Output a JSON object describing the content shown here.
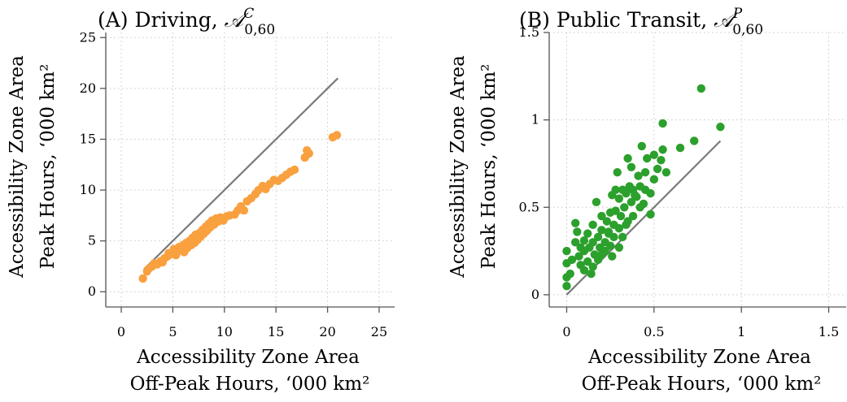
{
  "chart_data": [
    {
      "type": "scatter",
      "title_prefix": "(A) Driving, ",
      "title_math_base": "𝒜",
      "title_math_sup": "C",
      "title_math_sub": "0,60",
      "xlabel_lines": [
        "Accessibility Zone Area",
        "Off-Peak Hours, ‘000 km²"
      ],
      "ylabel_lines": [
        "Accessibility Zone Area",
        "Peak Hours, ‘000 km²"
      ],
      "xlim": [
        -1.5,
        26.5
      ],
      "ylim": [
        -1.5,
        25.5
      ],
      "xticks": [
        0,
        5,
        10,
        15,
        20,
        25
      ],
      "yticks": [
        0,
        5,
        10,
        15,
        20,
        25
      ],
      "xtick_labels": [
        "0",
        "5",
        "10",
        "15",
        "20",
        "25"
      ],
      "ytick_labels": [
        "0",
        "5",
        "10",
        "15",
        "20",
        "25"
      ],
      "grid": true,
      "point_color": "#f9a03f",
      "reference_line": {
        "x": [
          2.2,
          21.0
        ],
        "y": [
          2.2,
          21.0
        ],
        "color": "#7a7a7a"
      },
      "series": [
        {
          "points": [
            [
              2.1,
              1.3
            ],
            [
              2.5,
              2.0
            ],
            [
              2.7,
              2.3
            ],
            [
              3.0,
              2.5
            ],
            [
              3.2,
              2.8
            ],
            [
              3.5,
              2.7
            ],
            [
              3.8,
              3.0
            ],
            [
              4.0,
              2.9
            ],
            [
              4.2,
              3.3
            ],
            [
              4.5,
              3.5
            ],
            [
              4.6,
              3.8
            ],
            [
              4.8,
              3.7
            ],
            [
              5.0,
              3.9
            ],
            [
              5.1,
              4.2
            ],
            [
              5.3,
              3.6
            ],
            [
              5.5,
              4.0
            ],
            [
              5.6,
              4.4
            ],
            [
              5.8,
              4.1
            ],
            [
              6.0,
              4.6
            ],
            [
              6.1,
              3.9
            ],
            [
              6.3,
              4.8
            ],
            [
              6.4,
              4.3
            ],
            [
              6.6,
              5.0
            ],
            [
              6.8,
              4.6
            ],
            [
              6.9,
              5.3
            ],
            [
              7.1,
              4.8
            ],
            [
              7.2,
              5.6
            ],
            [
              7.4,
              5.1
            ],
            [
              7.6,
              5.8
            ],
            [
              7.7,
              5.4
            ],
            [
              7.9,
              6.1
            ],
            [
              8.0,
              5.7
            ],
            [
              8.2,
              6.4
            ],
            [
              8.3,
              6.0
            ],
            [
              8.5,
              6.7
            ],
            [
              8.6,
              6.3
            ],
            [
              8.8,
              7.0
            ],
            [
              9.0,
              6.6
            ],
            [
              9.2,
              7.2
            ],
            [
              9.4,
              6.9
            ],
            [
              9.6,
              7.3
            ],
            [
              9.9,
              7.0
            ],
            [
              10.2,
              7.4
            ],
            [
              10.5,
              7.5
            ],
            [
              11.0,
              7.6
            ],
            [
              11.3,
              8.0
            ],
            [
              11.6,
              8.4
            ],
            [
              11.9,
              8.0
            ],
            [
              12.2,
              8.9
            ],
            [
              12.6,
              9.2
            ],
            [
              13.0,
              9.6
            ],
            [
              13.3,
              10.0
            ],
            [
              13.7,
              10.4
            ],
            [
              14.0,
              10.1
            ],
            [
              14.4,
              10.6
            ],
            [
              14.8,
              11.0
            ],
            [
              15.2,
              10.9
            ],
            [
              15.6,
              11.2
            ],
            [
              16.0,
              11.5
            ],
            [
              16.4,
              11.8
            ],
            [
              16.8,
              12.0
            ],
            [
              17.8,
              13.2
            ],
            [
              18.0,
              13.9
            ],
            [
              18.2,
              13.6
            ],
            [
              20.5,
              15.2
            ],
            [
              20.9,
              15.4
            ]
          ]
        }
      ]
    },
    {
      "type": "scatter",
      "title_prefix": "(B) Public Transit, ",
      "title_math_base": "𝒜",
      "title_math_sup": "P",
      "title_math_sub": "0,60",
      "xlabel_lines": [
        "Accessibility Zone Area",
        "Off-Peak Hours, ‘000 km²"
      ],
      "ylabel_lines": [
        "Accessibility Zone Area",
        "Peak Hours, ‘000 km²"
      ],
      "xlim": [
        -0.1,
        1.6
      ],
      "ylim": [
        -0.07,
        1.5
      ],
      "xticks": [
        0,
        0.5,
        1,
        1.5
      ],
      "yticks": [
        0,
        0.5,
        1,
        1.5
      ],
      "xtick_labels": [
        "0",
        "0.5",
        "1",
        "1.5"
      ],
      "ytick_labels": [
        "0",
        "0.5",
        "1",
        "1.5"
      ],
      "grid": true,
      "point_color": "#2ca02c",
      "reference_line": {
        "x": [
          0.0,
          0.88
        ],
        "y": [
          0.0,
          0.88
        ],
        "color": "#7a7a7a"
      },
      "series": [
        {
          "points": [
            [
              0.0,
              0.05
            ],
            [
              0.0,
              0.1
            ],
            [
              0.0,
              0.18
            ],
            [
              0.0,
              0.25
            ],
            [
              0.02,
              0.12
            ],
            [
              0.03,
              0.2
            ],
            [
              0.05,
              0.3
            ],
            [
              0.05,
              0.41
            ],
            [
              0.06,
              0.36
            ],
            [
              0.07,
              0.22
            ],
            [
              0.08,
              0.17
            ],
            [
              0.08,
              0.27
            ],
            [
              0.1,
              0.14
            ],
            [
              0.1,
              0.25
            ],
            [
              0.1,
              0.31
            ],
            [
              0.12,
              0.19
            ],
            [
              0.12,
              0.35
            ],
            [
              0.13,
              0.27
            ],
            [
              0.14,
              0.12
            ],
            [
              0.15,
              0.3
            ],
            [
              0.15,
              0.4
            ],
            [
              0.16,
              0.23
            ],
            [
              0.17,
              0.53
            ],
            [
              0.18,
              0.2
            ],
            [
              0.18,
              0.33
            ],
            [
              0.19,
              0.27
            ],
            [
              0.2,
              0.37
            ],
            [
              0.2,
              0.45
            ],
            [
              0.22,
              0.25
            ],
            [
              0.22,
              0.3
            ],
            [
              0.23,
              0.42
            ],
            [
              0.24,
              0.35
            ],
            [
              0.25,
              0.47
            ],
            [
              0.25,
              0.28
            ],
            [
              0.26,
              0.57
            ],
            [
              0.27,
              0.33
            ],
            [
              0.27,
              0.4
            ],
            [
              0.28,
              0.6
            ],
            [
              0.28,
              0.48
            ],
            [
              0.29,
              0.7
            ],
            [
              0.3,
              0.38
            ],
            [
              0.3,
              0.55
            ],
            [
              0.31,
              0.45
            ],
            [
              0.32,
              0.6
            ],
            [
              0.32,
              0.33
            ],
            [
              0.33,
              0.5
            ],
            [
              0.34,
              0.58
            ],
            [
              0.35,
              0.42
            ],
            [
              0.35,
              0.78
            ],
            [
              0.36,
              0.62
            ],
            [
              0.37,
              0.53
            ],
            [
              0.37,
              0.73
            ],
            [
              0.38,
              0.6
            ],
            [
              0.38,
              0.45
            ],
            [
              0.4,
              0.56
            ],
            [
              0.41,
              0.68
            ],
            [
              0.42,
              0.5
            ],
            [
              0.42,
              0.62
            ],
            [
              0.43,
              0.85
            ],
            [
              0.45,
              0.6
            ],
            [
              0.45,
              0.7
            ],
            [
              0.46,
              0.78
            ],
            [
              0.48,
              0.58
            ],
            [
              0.5,
              0.66
            ],
            [
              0.5,
              0.8
            ],
            [
              0.52,
              0.72
            ],
            [
              0.54,
              0.77
            ],
            [
              0.55,
              0.83
            ],
            [
              0.55,
              0.98
            ],
            [
              0.57,
              0.7
            ],
            [
              0.65,
              0.84
            ],
            [
              0.73,
              0.88
            ],
            [
              0.77,
              1.18
            ],
            [
              0.88,
              0.96
            ],
            [
              0.15,
              0.16
            ],
            [
              0.2,
              0.23
            ],
            [
              0.24,
              0.36
            ],
            [
              0.3,
              0.27
            ],
            [
              0.26,
              0.22
            ],
            [
              0.34,
              0.4
            ],
            [
              0.39,
              0.57
            ],
            [
              0.44,
              0.52
            ],
            [
              0.48,
              0.46
            ]
          ]
        }
      ]
    }
  ]
}
